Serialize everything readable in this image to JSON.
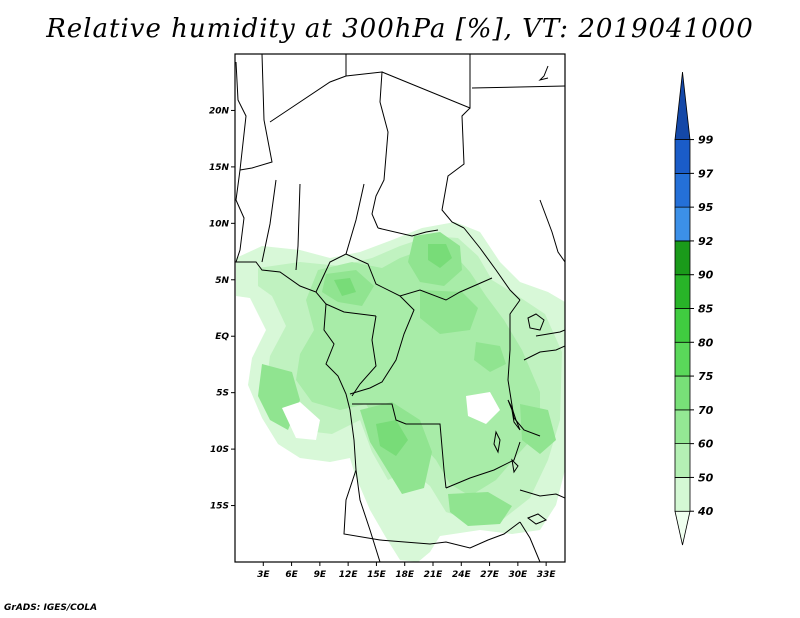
{
  "title": "Relative humidity at 300hPa [%], VT: 2019041000",
  "credit": "GrADS: IGES/COLA",
  "map": {
    "lon_range": [
      0,
      35
    ],
    "lat_range": [
      -20,
      25
    ],
    "lat_ticks": [
      "20N",
      "15N",
      "10N",
      "5N",
      "EQ",
      "5S",
      "10S",
      "15S"
    ],
    "lat_values": [
      20,
      15,
      10,
      5,
      0,
      -5,
      -10,
      -15
    ],
    "lon_ticks": [
      "3E",
      "6E",
      "9E",
      "12E",
      "15E",
      "18E",
      "21E",
      "24E",
      "27E",
      "30E",
      "33E"
    ],
    "lon_values": [
      3,
      6,
      9,
      12,
      15,
      18,
      21,
      24,
      27,
      30,
      33
    ]
  },
  "colorbar": {
    "levels": [
      "40",
      "50",
      "60",
      "70",
      "75",
      "80",
      "85",
      "90",
      "92",
      "95",
      "97",
      "99"
    ],
    "colors": [
      "#f0fff0",
      "#d4f8d4",
      "#b4f0b4",
      "#94e894",
      "#78e078",
      "#5ad85a",
      "#40cc40",
      "#28b428",
      "#1a9a1a",
      "#3c90e8",
      "#2470d8",
      "#1a5cc8",
      "#1448a8"
    ]
  }
}
